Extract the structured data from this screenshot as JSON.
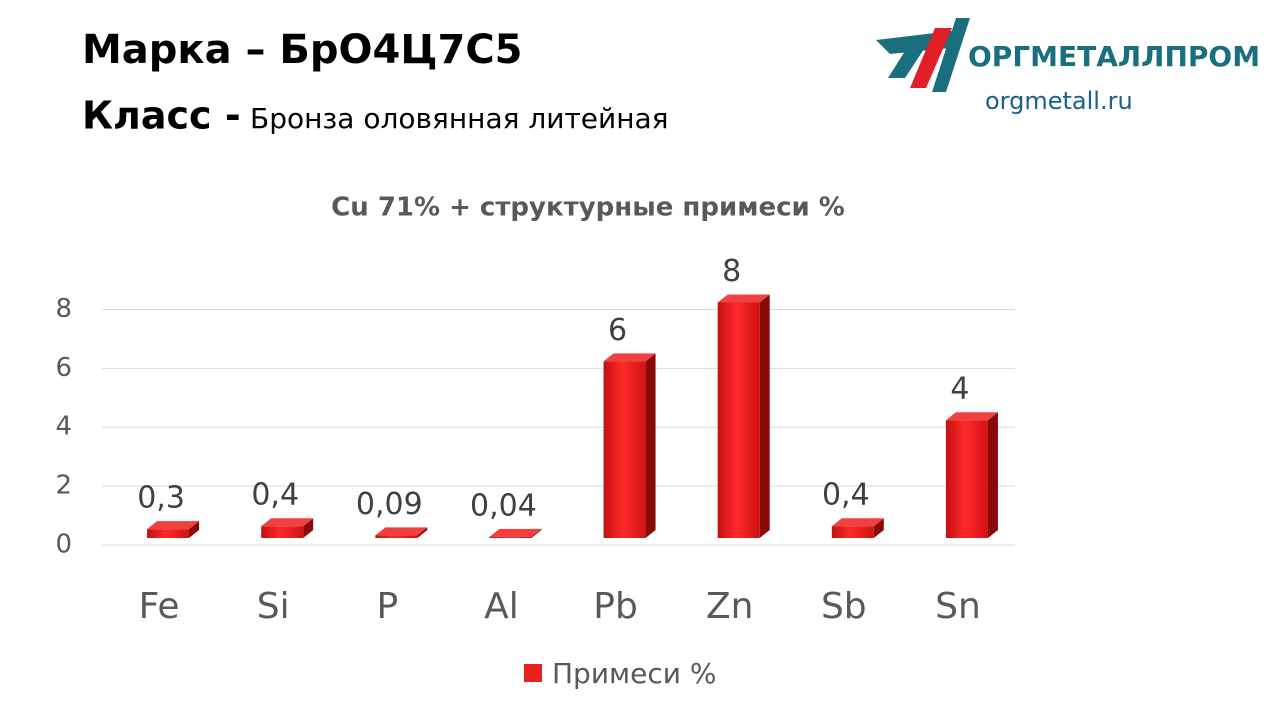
{
  "header": {
    "grade": "Марка – БрО4Ц7С5",
    "class_label": "Класс -",
    "class_value": "Бронза оловянная литейная"
  },
  "logo": {
    "name": "ОРГМЕТАЛЛПРОМ",
    "url": "orgmetall.ru"
  },
  "chart_data": {
    "type": "bar",
    "title": "Cu 71% + структурные примеси %",
    "categories": [
      "Fe",
      "Si",
      "P",
      "Al",
      "Pb",
      "Zn",
      "Sb",
      "Sn"
    ],
    "series": [
      {
        "name": "Примеси %",
        "color": "#e8201e",
        "values": [
          0.3,
          0.4,
          0.09,
          0.04,
          6,
          8,
          0.4,
          4
        ],
        "value_labels": [
          "0,3",
          "0,4",
          "0,09",
          "0,04",
          "6",
          "8",
          "0,4",
          "4"
        ]
      }
    ],
    "ylim": [
      0,
      9
    ],
    "yticks": [
      0,
      2,
      4,
      6,
      8
    ],
    "grid": true,
    "legend": "bottom"
  }
}
